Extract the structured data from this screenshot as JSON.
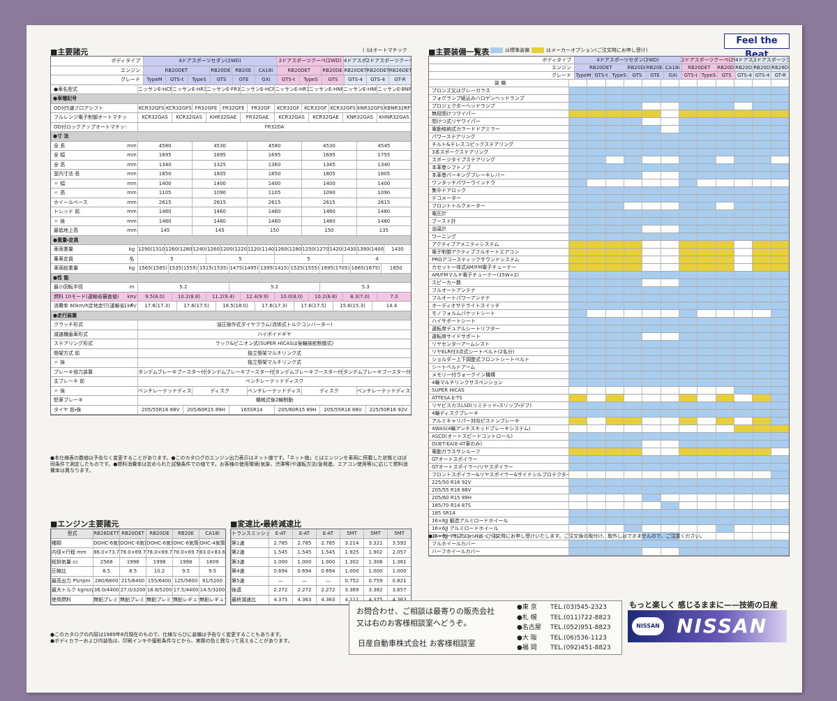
{
  "header": {
    "badge": "Feel the Beat"
  },
  "spec": {
    "title": "■主要諸元",
    "note": "( )はオートマチック",
    "head_labels": [
      "ボディタイプ",
      "エンジン",
      "グレード"
    ],
    "body_types": [
      "4ドアスポーツセダン(2WD)",
      "2ドアスポーツクーペ(2WD)",
      "4ドアスポーツセダン(4WD)",
      "2ドアスポーツクーペ(4WD)"
    ],
    "engines": [
      "RB20DET",
      "RB20DE",
      "RB20E",
      "CA18i",
      "RB20DET",
      "RB20DE",
      "RB20DET",
      "RB20DET",
      "RB26DETT"
    ],
    "grades": [
      "TypeM",
      "GTS-t",
      "TypeS",
      "GTS",
      "GTE",
      "GXi",
      "GTS-t",
      "TypeS",
      "GTS",
      "GTS-4",
      "GTS-4",
      "GT-R"
    ],
    "rows": [
      {
        "label": "●車名型式",
        "values": [
          "ニッサンE-HCR32",
          "ニッサンE-HR32",
          "ニッサンE-FR32",
          "ニッサンE-HCR32",
          "ニッサンE-HR32",
          "ニッサンE-HNR32",
          "ニッサンE-HNR32",
          "ニッサンE-BNR32"
        ]
      },
      {
        "heading": "●車種記号"
      },
      {
        "label": "OD付5速フロアシフト",
        "values": [
          "KCR32GFS",
          "KCR32GFS",
          "FR32GFE",
          "FR32GFE",
          "FR32GF",
          "KCR32GF",
          "KCR32GF",
          "KCR32GFS",
          "KNR32GFS",
          "KBNR32RFS"
        ]
      },
      {
        "label": "フルレンジ電子制御オートマチック(E-AT)",
        "values": [
          "KCR32GAS",
          "KCR32GAS",
          "KHR32GAE",
          "FR32GAE",
          "KCR32GAS",
          "KCR32GAE",
          "KNR32GAS",
          "KHNR32GAS"
        ]
      },
      {
        "label": "OD付ロックアップオートマチック",
        "values": [
          "FR32DA"
        ]
      },
      {
        "heading": "●寸 法"
      },
      {
        "label": "全 長",
        "unit": "mm",
        "values": [
          "4580",
          "4530",
          "4580",
          "4530",
          "4545"
        ]
      },
      {
        "label": "全 幅",
        "unit": "mm",
        "values": [
          "1695",
          "1695",
          "1695",
          "1695",
          "1755"
        ]
      },
      {
        "label": "全 高",
        "unit": "mm",
        "values": [
          "1340",
          "1325",
          "1360",
          "1345",
          "1340"
        ]
      },
      {
        "label": "室内寸法 長",
        "unit": "mm",
        "values": [
          "1850",
          "1805",
          "1850",
          "1805",
          "1805"
        ]
      },
      {
        "label": "〃 幅",
        "unit": "mm",
        "values": [
          "1400",
          "1400",
          "1400",
          "1400",
          "1400"
        ]
      },
      {
        "label": "〃 高",
        "unit": "mm",
        "values": [
          "1105",
          "1090",
          "1105",
          "1090",
          "1090"
        ]
      },
      {
        "label": "ホイールベース",
        "unit": "mm",
        "values": [
          "2615",
          "2615",
          "2615",
          "2615",
          "2615"
        ]
      },
      {
        "label": "トレッド 前",
        "unit": "mm",
        "values": [
          "1460",
          "1460",
          "1460",
          "1460",
          "1480"
        ]
      },
      {
        "label": "〃 後",
        "unit": "mm",
        "values": [
          "1460",
          "1460",
          "1460",
          "1460",
          "1480"
        ]
      },
      {
        "label": "最低地上高",
        "unit": "mm",
        "values": [
          "145",
          "145",
          "150",
          "150",
          "135"
        ]
      },
      {
        "heading": "●重量・定員"
      },
      {
        "label": "車両重量",
        "unit": "kg",
        "values": [
          "1290(1310)",
          "1260(1280)",
          "1240(1260)",
          "1200(1220)",
          "1120(1140)",
          "1260(1280)",
          "1250(1270)",
          "1420(1430)",
          "1390(1400)",
          "1430"
        ]
      },
      {
        "label": "乗車定員",
        "unit": "名",
        "values": [
          "5",
          "5",
          "5",
          "4"
        ]
      },
      {
        "label": "車両総重量",
        "unit": "kg",
        "values": [
          "1565(1585)",
          "1535(1555)",
          "1515(1535)",
          "1475(1495)",
          "1395(1415)",
          "1525(1555)",
          "1695(1705)",
          "1665(1675)",
          "1650"
        ]
      },
      {
        "heading": "●性 能"
      },
      {
        "label": "最小回転半径",
        "unit": "m",
        "values": [
          "5.2",
          "5.2",
          "5.3"
        ]
      },
      {
        "label": "燃料 10モード(運輸省審査値)",
        "unit": "km/ℓ",
        "hl": true,
        "values": [
          "9.5(8.0)",
          "10.2(8.8)",
          "11.2(9.4)",
          "12.4(9.9)",
          "10.0(8.0)",
          "10.2(8.8)",
          "8.3(7.0)",
          "7.0"
        ]
      },
      {
        "label": "消費率 60km/h定地走行(運輸省届出値)",
        "unit": "km/ℓ",
        "values": [
          "17.6(17.3)",
          "17.6(17.5)",
          "18.5(18.0)",
          "17.6(17.3)",
          "17.6(17.5)",
          "15.6(15.3)",
          "14.4"
        ]
      },
      {
        "heading": "●走行装置"
      },
      {
        "label": "クラッチ形式",
        "values": [
          "油圧操作式ダイヤフラム(流体式トルクコンバーター)"
        ]
      },
      {
        "label": "減速機歯車形式",
        "values": [
          "ハイポイドギヤ"
        ]
      },
      {
        "label": "ステアリング形式",
        "values": [
          "ラック&ピニオン式(SUPER HICASは後輪操舵制御式)"
        ]
      },
      {
        "label": "懸架方式 前",
        "values": [
          "独立懸架マルチリンク式"
        ]
      },
      {
        "label": "〃 後",
        "values": [
          "独立懸架マルチリンク式"
        ]
      },
      {
        "label": "ブレーキ倍力装置",
        "values": [
          "タンデムブレーキブースター付独立2系統",
          "タンデムブレーキブースター付独立2系統",
          "タンデムブレーキブースター付独立2系統",
          "タンデムブレーキブースター付独立2系統"
        ]
      },
      {
        "label": "主ブレーキ 前",
        "values": [
          "ベンチレーテッドディスク"
        ]
      },
      {
        "label": "〃 後",
        "values": [
          "ベンチレーテッドディスク",
          "ディスク",
          "ベンチレーテッドディスク",
          "ディスク",
          "ベンチレーテッドディスク"
        ]
      },
      {
        "label": "駐車ブレーキ",
        "values": [
          "機械式後2輪制動"
        ]
      },
      {
        "label": "タイヤ 前・後",
        "values": [
          "205/55R16 88V",
          "205/60R15 89H",
          "165SR14",
          "205/60R15 89H",
          "205/55R16 88V",
          "225/50R16 92V"
        ]
      }
    ],
    "footnote": "●本仕様表の数値は予告なく変更することがあります。●このカタログのエンジン出力表示はネット値です。「ネット値」とはエンジンを車両に搭載した状態とほぼ同条件で測定したものです。●燃料消費率は定められた試験条件での値です。お客様の使用環境(気象、渋滞等)や運転方法(急発進、エアコン使用等)に応じて燃料消費率は異なります。"
  },
  "engine": {
    "title": "■エンジン主要諸元",
    "columns": [
      "型式",
      "RB26DETT",
      "RB20DET",
      "RB20DE",
      "RB20E",
      "CA18i"
    ],
    "rows": [
      [
        "種類",
        "DOHC-6気筒",
        "DOHC-6気筒",
        "DOHC-6気筒",
        "OHC-6気筒",
        "OHC-4気筒"
      ],
      [
        "内径×行程 mm",
        "86.0×73.7",
        "78.0×69.7",
        "78.0×69.7",
        "78.0×69.7",
        "83.0×83.6"
      ],
      [
        "総排気量 cc",
        "2568",
        "1998",
        "1998",
        "1998",
        "1809"
      ],
      [
        "圧縮比",
        "8.5",
        "8.5",
        "10.2",
        "9.5",
        "9.5"
      ],
      [
        "最高出力 PS/rpm",
        "280/6800",
        "215/6400",
        "155/6400",
        "125/5600",
        "91/5200"
      ],
      [
        "最大トルク kgm/rpm",
        "36.0/4400",
        "27.0/3200",
        "18.8/5200",
        "17.5/4400",
        "14.5/3200"
      ],
      [
        "使用燃料",
        "無鉛プレミアムガソリン",
        "無鉛プレミアムガソリン",
        "無鉛プレミアムガソリン",
        "無鉛レギュラーガソリン",
        "無鉛レギュラーガソリン"
      ]
    ]
  },
  "trans": {
    "title": "■変速比・最終減速比",
    "columns": [
      "トランスミッション",
      "E-AT",
      "E-AT",
      "E-AT",
      "5MT",
      "5MT",
      "5MT"
    ],
    "rows": [
      [
        "第1速",
        "2.785",
        "2.785",
        "2.785",
        "3.214",
        "3.321",
        "3.592"
      ],
      [
        "第2速",
        "1.545",
        "1.545",
        "1.545",
        "1.925",
        "1.902",
        "2.057"
      ],
      [
        "第3速",
        "1.000",
        "1.000",
        "1.000",
        "1.302",
        "1.308",
        "1.361"
      ],
      [
        "第4速",
        "0.694",
        "0.694",
        "0.694",
        "1.000",
        "1.000",
        "1.000"
      ],
      [
        "第5速",
        "—",
        "—",
        "—",
        "0.752",
        "0.759",
        "0.821"
      ],
      [
        "後退",
        "2.272",
        "2.272",
        "2.272",
        "3.369",
        "3.382",
        "3.657"
      ],
      [
        "最終減速比",
        "4.375",
        "4.363",
        "4.363",
        "4.111",
        "4.375",
        "4.363"
      ]
    ]
  },
  "equip": {
    "title": "■主要装備一覧表",
    "legend_std": "は標準装備",
    "legend_opt": "はメーカーオプション(ご注文時にお申し受け)",
    "head_labels": [
      "ボディタイプ",
      "エンジン",
      "グレード",
      "装 備"
    ],
    "body_types": [
      "4ドアスポーツセダン(2WD)",
      "2ドアスポーツクーペ(2WD)",
      "4ドアスポーツセダン(4WD)",
      "2ドアスポーツクーペ(4WD)"
    ],
    "engines": [
      "RB20DET",
      "RB20DE",
      "RB20E",
      "CA18i",
      "RB20DET",
      "RB20DE",
      "RB20DET",
      "RB20DET",
      "RB26DETT"
    ],
    "grades": [
      "TypeM",
      "GTS-t",
      "TypeS",
      "GTS",
      "GTE",
      "GXi",
      "GTS-t",
      "TypeS",
      "GTS",
      "GTS-4",
      "GTS-4",
      "GT-R"
    ],
    "items": [
      "ブロンズ又はグレーガラス",
      "フォグランプ組込みハロゲンヘッドランプ",
      "プロジェクターヘッドランプ",
      "無段間けつワイパー",
      "間けつ式リヤワイパー",
      "電動格納式カラードドアミラー",
      "パワーステアリング",
      "チルト&テレスコピックステアリング",
      "3本スポークステアリング",
      "スポーツタイプステアリング",
      "本革巻シフトノブ",
      "本革巻パーキングブレーキレバー",
      "ワンタッチパワーウインドウ",
      "集中ドアロック",
      "デコメーター",
      "フロントトルクメーター",
      "電圧計",
      "ブースト計",
      "油温計",
      "ワーニング",
      "アクティブアメニティシステム",
      "電子制御アクティブフルオートエアコン",
      "PROアコースティックサウンドシステム",
      "カセット一体式AM/FM電子チューナー",
      "AM/FMマルチ電子チューナー(15W×2)",
      "スピーカー数",
      "フルオートアンテナ",
      "フルオートパワーアンテナ",
      "オーディオサテライトスイッチ",
      "モノフォルムバケットシート",
      "ハイサポートシート",
      "運転席デュアルシートリフター",
      "運転席サイドサポート",
      "リヤセンターアームレスト",
      "リヤELR付3点式シートベルト(2名分)",
      "ショルダー上下調整式フロントシートベルト",
      "シートベルトアーム",
      "メモリー付ウォークイン機構",
      "4輪マルチリンクサスペンション",
      "SUPER HICAS",
      "ATTESA E-TS",
      "リヤビスカスLSD(リミテッド・スリップ・デフ)",
      "4輪ディスクブレーキ",
      "アルミキャリパー対向ピストンブレーキ",
      "4WAS(4輪アンチスキッドブレーキシステム)",
      "ASCD(オートスピードコントロール)",
      "DUET-EA(E-AT車のみ)",
      "電動ガラスサンルーフ",
      "GTオートスポイラー",
      "GTオートスポイラー/リヤスポイラー",
      "フロントスポイラー&リヤスポイラー&サイドシルプロテクター",
      "225/50 R16 92V",
      "205/55 R16 88V",
      "205/60 R15 89H",
      "185/70 R14 87S",
      "185 SR14",
      "16×8JJ 鍛造アルミロードホイール",
      "16×6JJ アルミロードホイール",
      "15×6JJ アルミロードホイール",
      "フルホイールカバー",
      "ハーフホイールカバー"
    ],
    "footnote": "●メーカーオプションは、ご注文時にお申し受けいたします。ご注文後の取付け、取外しはできませんので、ご注意ください。"
  },
  "notes": [
    "●このカタログの内容は1989年8月現在のもので、仕様ならびに装備は予告なく変更することもあります。",
    "●ボディカラーおよび内装色は、印刷インキや撮影条件などから、実際の色と異なって見えることがあります。"
  ],
  "contact": {
    "lines": [
      "お問合わせ、ご相談は最寄りの販売会社",
      "又は右のお客様相談室へどうぞ。"
    ],
    "company": "日産自動車株式会社 お客様相談室",
    "offices": [
      [
        "●東 京",
        "TEL.(03)545-2323"
      ],
      [
        "●札 幌",
        "TEL.(011)722-8823"
      ],
      [
        "●名古屋",
        "TEL.(052)951-8823"
      ],
      [
        "●大 阪",
        "TEL.(06)536-1123"
      ],
      [
        "●福 岡",
        "TEL.(092)451-8823"
      ]
    ]
  },
  "brand": {
    "slogan": "もっと楽しく 感じるままに——技術の日産",
    "logo": "NISSAN",
    "emblem": "NISSAN"
  }
}
